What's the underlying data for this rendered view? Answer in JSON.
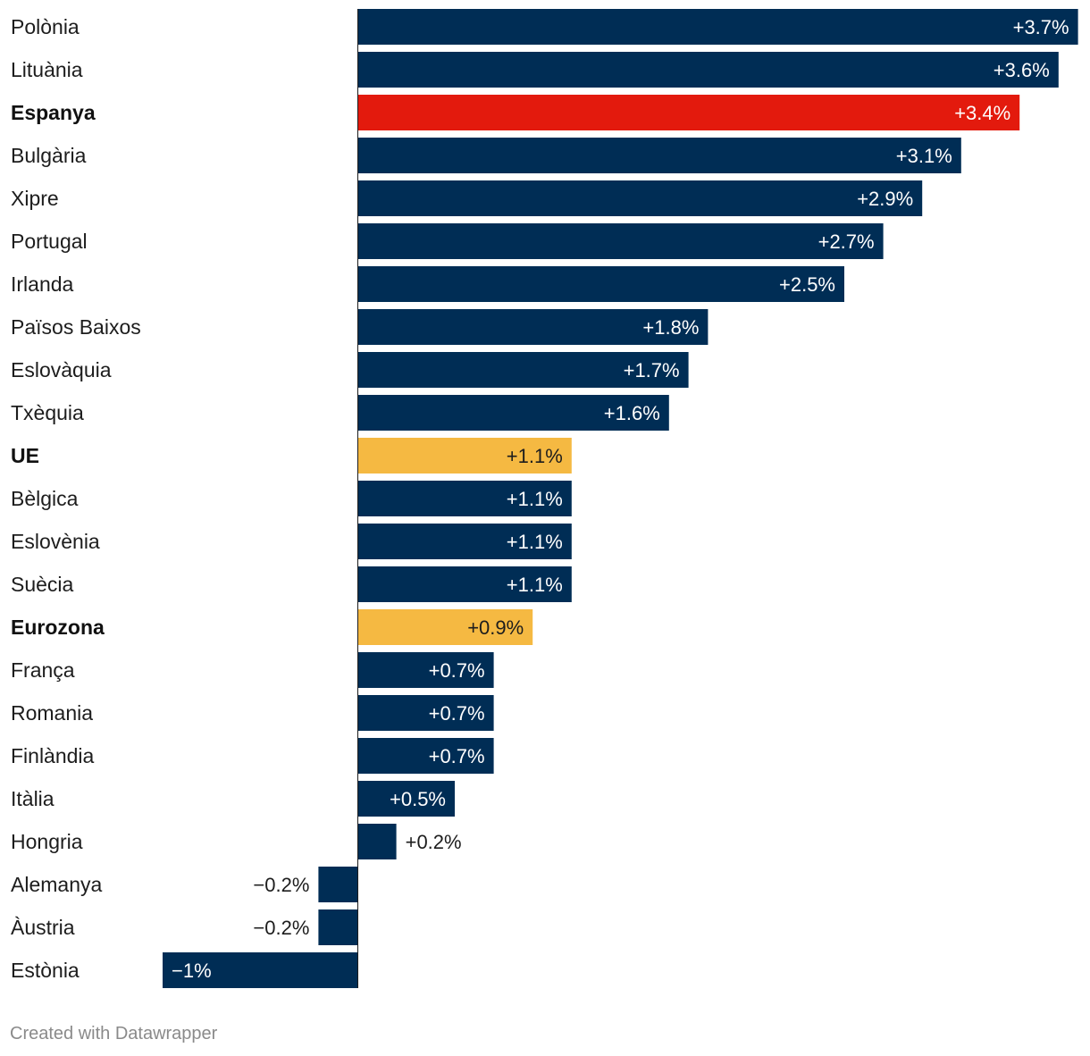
{
  "chart_data": {
    "type": "bar",
    "orientation": "horizontal",
    "categories": [
      "Polònia",
      "Lituània",
      "Espanya",
      "Bulgària",
      "Xipre",
      "Portugal",
      "Irlanda",
      "Països Baixos",
      "Eslovàquia",
      "Txèquia",
      "UE",
      "Bèlgica",
      "Eslovènia",
      "Suècia",
      "Eurozona",
      "França",
      "Romania",
      "Finlàndia",
      "Itàlia",
      "Hongria",
      "Alemanya",
      "Àustria",
      "Estònia"
    ],
    "values": [
      3.7,
      3.6,
      3.4,
      3.1,
      2.9,
      2.7,
      2.5,
      1.8,
      1.7,
      1.6,
      1.1,
      1.1,
      1.1,
      1.1,
      0.9,
      0.7,
      0.7,
      0.7,
      0.5,
      0.2,
      -0.2,
      -0.2,
      -1
    ],
    "value_labels": [
      "+3.7%",
      "+3.6%",
      "+3.4%",
      "+3.1%",
      "+2.9%",
      "+2.7%",
      "+2.5%",
      "+1.8%",
      "+1.7%",
      "+1.6%",
      "+1.1%",
      "+1.1%",
      "+1.1%",
      "+1.1%",
      "+0.9%",
      "+0.7%",
      "+0.7%",
      "+0.7%",
      "+0.5%",
      "+0.2%",
      "−0.2%",
      "−0.2%",
      "−1%"
    ],
    "highlight": {
      "Espanya": "#e31a0d",
      "UE": "#f5b942",
      "Eurozona": "#f5b942"
    },
    "bold_categories": [
      "Espanya",
      "UE",
      "Eurozona"
    ],
    "default_color": "#002d55",
    "xlim": [
      -1.0,
      3.7
    ],
    "title": "",
    "xlabel": "",
    "ylabel": ""
  },
  "footer": {
    "credit": "Created with Datawrapper"
  }
}
